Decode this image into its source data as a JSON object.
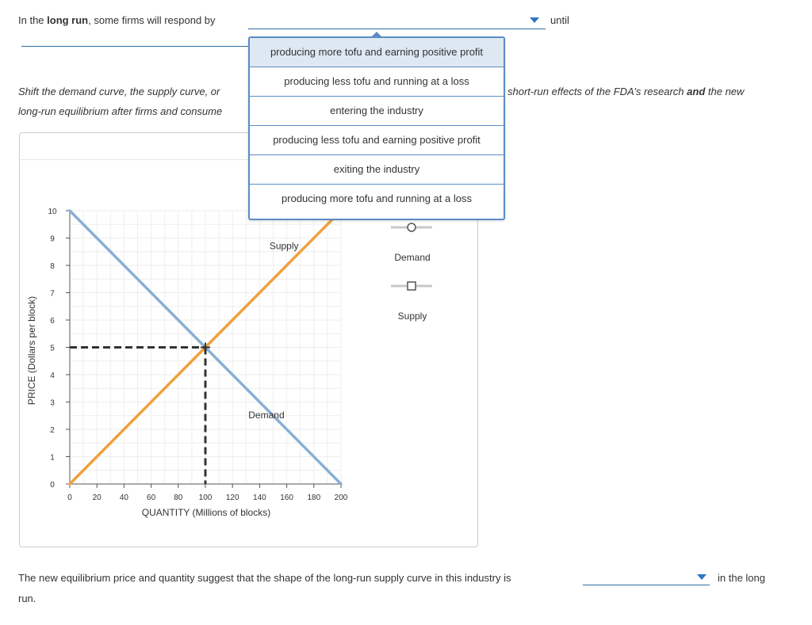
{
  "question1": {
    "prefix": "In the ",
    "bold": "long run",
    "suffix": ", some firms will respond by",
    "after": "until"
  },
  "instruction": {
    "left1": "Shift the demand curve, the supply curve, or",
    "left2": "long-run equilibrium after firms and consume",
    "right_pre": "short-run effects of the FDA’s research ",
    "right_bold": "and",
    "right_post": " the new"
  },
  "dropdown": {
    "options": [
      "producing more tofu and earning positive profit",
      "producing less tofu and running at a loss",
      "entering the industry",
      "producing less tofu and earning positive profit",
      "exiting the industry",
      "producing more tofu and running at a loss"
    ],
    "highlighted_index": 0
  },
  "legend": {
    "demand_label": "Demand",
    "supply_label": "Supply"
  },
  "question2": {
    "text": "The new equilibrium price and quantity suggest that the shape of the long-run supply curve in this industry is",
    "after": "in the long",
    "wrap": "run."
  },
  "colors": {
    "demand": "#8aafd6",
    "supply": "#f0a03c",
    "accent": "#2e75c5",
    "dashed": "#333333"
  },
  "chart_data": {
    "type": "line",
    "xlabel": "QUANTITY (Millions of blocks)",
    "ylabel": "PRICE (Dollars per block)",
    "xlim": [
      0,
      200
    ],
    "ylim": [
      0,
      10
    ],
    "x_ticks": [
      0,
      20,
      40,
      60,
      80,
      100,
      120,
      140,
      160,
      180,
      200
    ],
    "y_ticks": [
      0,
      1,
      2,
      3,
      4,
      5,
      6,
      7,
      8,
      9,
      10
    ],
    "series": [
      {
        "name": "Demand",
        "points": [
          [
            0,
            10
          ],
          [
            200,
            0
          ]
        ],
        "label": "Demand",
        "label_at": [
          145,
          2.4
        ]
      },
      {
        "name": "Supply",
        "points": [
          [
            0,
            0
          ],
          [
            200,
            10
          ]
        ],
        "label": "Supply",
        "label_at": [
          158,
          8.6
        ]
      }
    ],
    "equilibrium": {
      "x": 100,
      "y": 5
    }
  }
}
